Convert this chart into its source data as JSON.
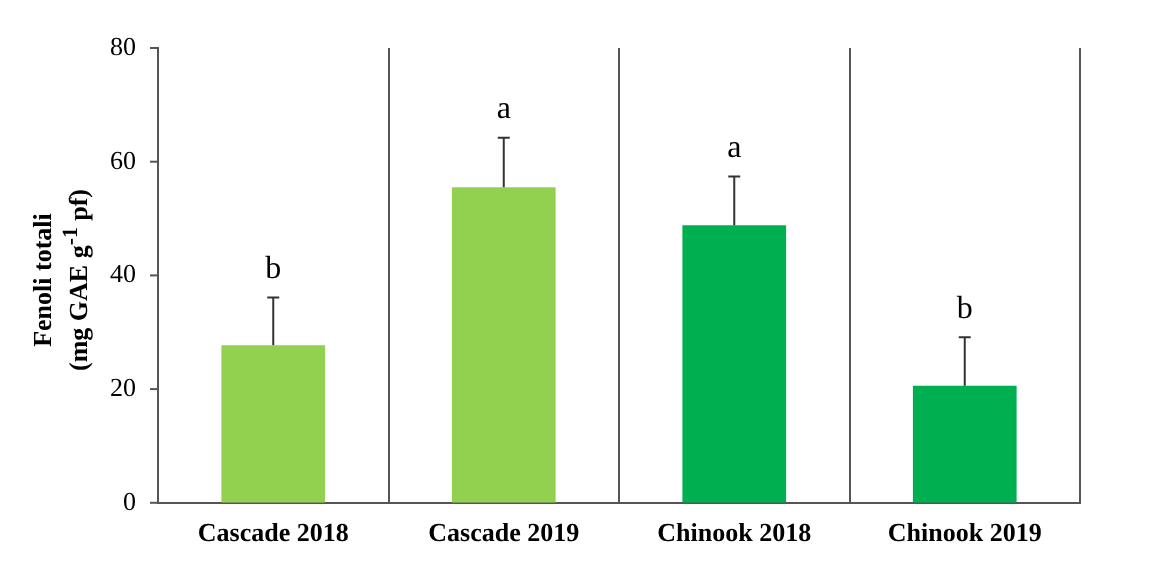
{
  "chart_data": {
    "type": "bar",
    "ylabel": "Fenoli totali\n(mg GAE g$^{-1}$ pf)",
    "categories": [
      "Cascade 2018",
      "Cascade 2019",
      "Chinook 2018",
      "Chinook 2019"
    ],
    "values": [
      27.7,
      55.5,
      48.8,
      20.6
    ],
    "colors": [
      "#92d050",
      "#92d050",
      "#00b050",
      "#00b050"
    ],
    "errors": [
      [
        27.7,
        36.1
      ],
      [
        55.5,
        64.2
      ],
      [
        48.8,
        57.4
      ],
      [
        20.6,
        29.1
      ]
    ],
    "ylim": [
      0,
      80
    ],
    "yticks": [
      0,
      20,
      40,
      60,
      80
    ],
    "grid": "x",
    "legend": false,
    "annotations": [
      {
        "text": "b",
        "x": "Cascade 2018",
        "y": 36.1
      },
      {
        "text": "a",
        "x": "Cascade 2019",
        "y": 64.2
      },
      {
        "text": "a",
        "x": "Chinook 2018",
        "y": 57.4
      },
      {
        "text": "b",
        "x": "Chinook 2019",
        "y": 29.1
      }
    ]
  }
}
